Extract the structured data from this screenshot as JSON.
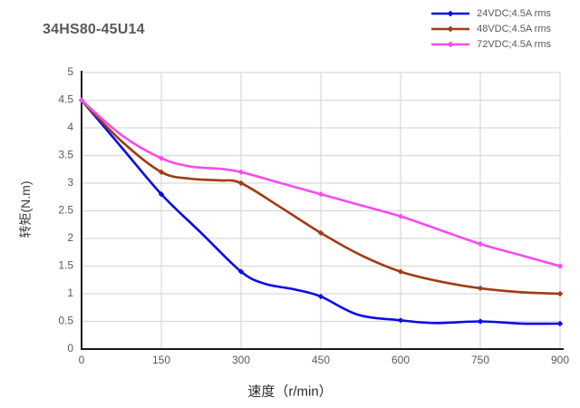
{
  "title": "34HS80-45U14",
  "colors": {
    "background": "#ffffff",
    "grid": "#d9d9d9",
    "axis": "#1a1a1a",
    "title_text": "#595959",
    "tick_text": "#595959",
    "blue": "#0b0be6",
    "brown": "#a03c14",
    "magenta": "#f64bf0"
  },
  "chart_data": {
    "type": "line",
    "title": "34HS80-45U14",
    "xlabel": "速度（r/min）",
    "ylabel": "转矩(N.m)",
    "xlim": [
      0,
      900
    ],
    "ylim": [
      0,
      5
    ],
    "x_ticks": [
      0,
      150,
      300,
      450,
      600,
      750,
      900
    ],
    "y_ticks": [
      0,
      0.5,
      1,
      1.5,
      2,
      2.5,
      3,
      3.5,
      4,
      4.5,
      5
    ],
    "grid": true,
    "legend_position": "top-right",
    "marker": "diamond",
    "categories": [
      0,
      150,
      300,
      450,
      600,
      750,
      900
    ],
    "series": [
      {
        "name": "24VDC;4.5A rms",
        "color": "#0b0be6",
        "values": [
          4.5,
          2.8,
          1.4,
          0.95,
          0.52,
          0.5,
          0.46
        ],
        "shape_points": [
          [
            0,
            4.5
          ],
          [
            75,
            3.65
          ],
          [
            150,
            2.8
          ],
          [
            225,
            2.1
          ],
          [
            300,
            1.4
          ],
          [
            345,
            1.18
          ],
          [
            400,
            1.08
          ],
          [
            450,
            0.95
          ],
          [
            520,
            0.62
          ],
          [
            600,
            0.52
          ],
          [
            665,
            0.47
          ],
          [
            750,
            0.5
          ],
          [
            830,
            0.46
          ],
          [
            900,
            0.46
          ]
        ]
      },
      {
        "name": "48VDC;4.5A rms",
        "color": "#a03c14",
        "values": [
          4.5,
          3.2,
          3.0,
          2.1,
          1.4,
          1.1,
          1.0
        ],
        "shape_points": [
          [
            0,
            4.5
          ],
          [
            75,
            3.76
          ],
          [
            150,
            3.2
          ],
          [
            205,
            3.08
          ],
          [
            260,
            3.05
          ],
          [
            300,
            3.0
          ],
          [
            375,
            2.56
          ],
          [
            450,
            2.1
          ],
          [
            525,
            1.7
          ],
          [
            600,
            1.4
          ],
          [
            675,
            1.22
          ],
          [
            750,
            1.1
          ],
          [
            825,
            1.03
          ],
          [
            900,
            1.0
          ]
        ]
      },
      {
        "name": "72VDC;4.5A rms",
        "color": "#f64bf0",
        "values": [
          4.5,
          3.45,
          3.2,
          2.8,
          2.4,
          1.9,
          1.5
        ],
        "shape_points": [
          [
            0,
            4.5
          ],
          [
            75,
            3.87
          ],
          [
            150,
            3.45
          ],
          [
            205,
            3.3
          ],
          [
            260,
            3.26
          ],
          [
            300,
            3.2
          ],
          [
            375,
            3.0
          ],
          [
            450,
            2.8
          ],
          [
            525,
            2.6
          ],
          [
            600,
            2.4
          ],
          [
            675,
            2.15
          ],
          [
            750,
            1.9
          ],
          [
            825,
            1.7
          ],
          [
            900,
            1.5
          ]
        ]
      }
    ]
  }
}
